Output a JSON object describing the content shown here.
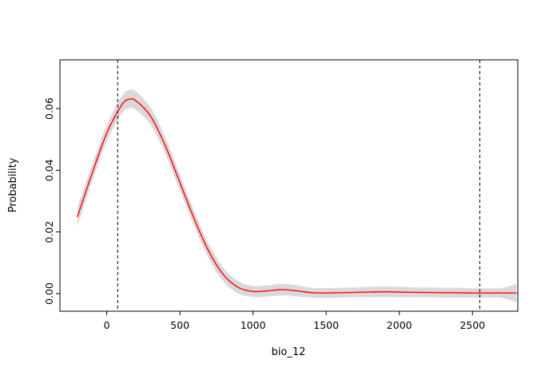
{
  "figure": {
    "background": "#ffffff",
    "box_color": "#000000"
  },
  "chart_data": {
    "type": "line",
    "title": "",
    "xlabel": "bio_12",
    "ylabel": "Probability",
    "xlim": [
      -320,
      2810
    ],
    "ylim": [
      -0.0057,
      0.0758
    ],
    "grid": false,
    "legend": "none",
    "x_tick_values": [
      0,
      500,
      1000,
      1500,
      2000,
      2500
    ],
    "x_tick_labels": [
      "0",
      "500",
      "1000",
      "1500",
      "2000",
      "2500"
    ],
    "y_tick_values": [
      0.0,
      0.02,
      0.04,
      0.06
    ],
    "y_tick_labels": [
      "0.00",
      "0.02",
      "0.04",
      "0.06"
    ],
    "vlines": {
      "values": [
        75,
        2550
      ],
      "style": "dashed",
      "color": "#000000"
    },
    "band": {
      "name": "confidence-band",
      "color": "#d9d9d9",
      "x": [
        -200,
        -100,
        0,
        100,
        150,
        200,
        300,
        400,
        500,
        600,
        700,
        800,
        900,
        1000,
        1100,
        1200,
        1300,
        1400,
        1500,
        1600,
        1700,
        1800,
        1900,
        2000,
        2100,
        2200,
        2300,
        2400,
        2500,
        2600,
        2700,
        2800
      ],
      "upper": [
        0.028,
        0.0418,
        0.0547,
        0.0638,
        0.066,
        0.0655,
        0.0603,
        0.0507,
        0.0386,
        0.0265,
        0.0159,
        0.0082,
        0.004,
        0.0025,
        0.0027,
        0.0032,
        0.0027,
        0.0019,
        0.0018,
        0.0019,
        0.002,
        0.0022,
        0.0023,
        0.0022,
        0.002,
        0.002,
        0.0019,
        0.0019,
        0.0017,
        0.0017,
        0.0018,
        0.0032
      ],
      "lower": [
        0.022,
        0.0362,
        0.0493,
        0.0582,
        0.06,
        0.0595,
        0.0547,
        0.0453,
        0.0334,
        0.0215,
        0.0111,
        0.0038,
        0.0,
        -0.0011,
        -0.0009,
        -0.0006,
        -0.0009,
        -0.0013,
        -0.0014,
        -0.0013,
        -0.0012,
        -0.0012,
        -0.0011,
        -0.0012,
        -0.0012,
        -0.0012,
        -0.0013,
        -0.0013,
        -0.0013,
        -0.0013,
        -0.0014,
        -0.0028
      ]
    },
    "series": [
      {
        "name": "response-curve",
        "color": "#ff0000",
        "x": [
          -200,
          -100,
          0,
          100,
          150,
          200,
          300,
          400,
          500,
          600,
          700,
          800,
          900,
          1000,
          1100,
          1200,
          1300,
          1400,
          1500,
          1600,
          1700,
          1800,
          1900,
          2000,
          2100,
          2200,
          2300,
          2400,
          2500,
          2600,
          2700,
          2800
        ],
        "y": [
          0.025,
          0.039,
          0.052,
          0.061,
          0.063,
          0.0625,
          0.0575,
          0.048,
          0.036,
          0.024,
          0.0135,
          0.006,
          0.002,
          0.0007,
          0.0009,
          0.0013,
          0.0009,
          0.0003,
          0.0002,
          0.0003,
          0.0004,
          0.0005,
          0.0006,
          0.0005,
          0.0004,
          0.0004,
          0.0003,
          0.0003,
          0.0002,
          0.0002,
          0.0002,
          0.0002
        ]
      }
    ]
  }
}
